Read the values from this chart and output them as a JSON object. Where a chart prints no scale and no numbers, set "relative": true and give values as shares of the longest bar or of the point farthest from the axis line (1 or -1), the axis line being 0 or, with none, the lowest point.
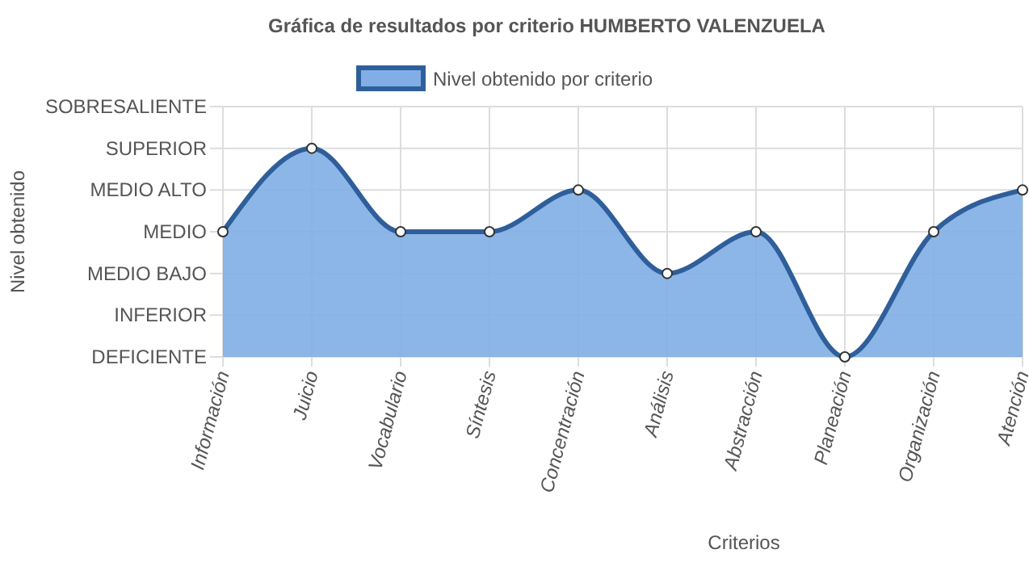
{
  "chart_data": {
    "type": "area",
    "title": "Gráfica de resultados por criterio HUMBERTO VALENZUELA",
    "xlabel": "Criterios",
    "annotations": [
      "Nivel obtenido"
    ],
    "categories": [
      "Información",
      "Juicio",
      "Vocabulario",
      "Síntesis",
      "Concentración",
      "Análisis",
      "Abstracción",
      "Planeación",
      "Organización",
      "Atención"
    ],
    "series": [
      {
        "name": "Nivel obtenido por criterio",
        "color": "#2f5f9a",
        "values": [
          0.6,
          1,
          0.6,
          0.6,
          0.8,
          0.4,
          0.6,
          0,
          0.6,
          0.8
        ]
      }
    ],
    "relative": true,
    "y_categories": [
      "SOBRESALIENTE",
      "SUPERIOR",
      "MEDIO ALTO",
      "MEDIO",
      "MEDIO BAJO",
      "INFERIOR",
      "DEFICIENTE"
    ],
    "grid": true,
    "legend": "top",
    "marker": "circle",
    "line_style": "solid"
  }
}
